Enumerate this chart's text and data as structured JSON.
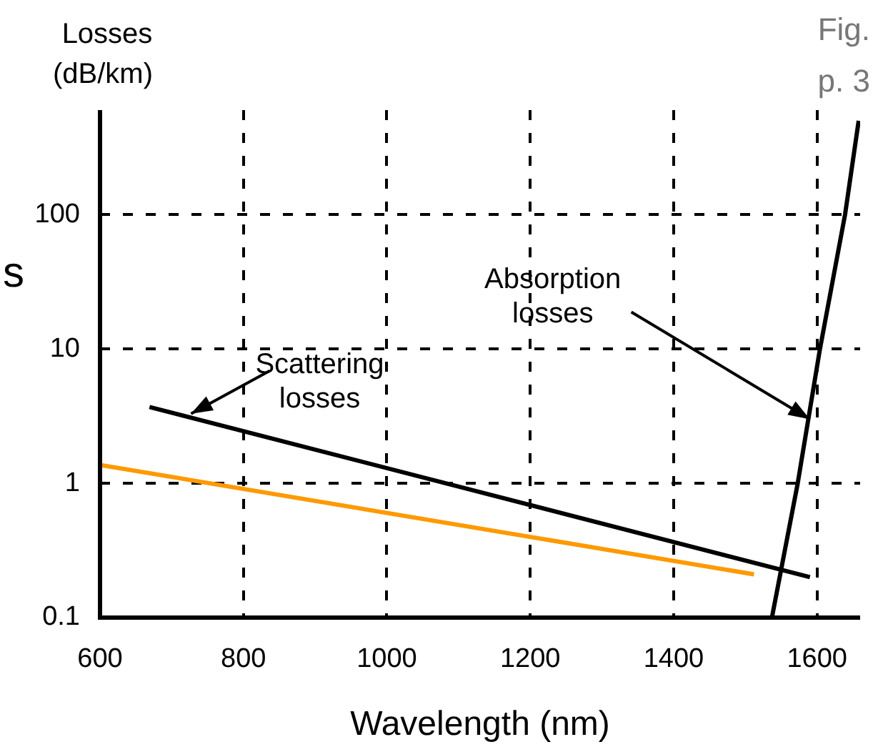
{
  "chart_data": {
    "type": "line",
    "xlabel": "Wavelength (nm)",
    "ylabel": "Losses (dB/km)",
    "log": "y",
    "xlim": [
      600,
      1660
    ],
    "xticks": [
      600,
      800,
      1000,
      1200,
      1400,
      1600
    ],
    "ylim": [
      0.1,
      600
    ],
    "yticks": [
      0.1,
      1,
      10,
      100
    ],
    "grid": true,
    "marker": "none",
    "legend": false,
    "series": [
      {
        "color": "#000000",
        "x": [
          669,
          1590
        ],
        "values": [
          3.7,
          0.2
        ]
      },
      {
        "color": "#ff9900",
        "x": [
          600,
          1512
        ],
        "values": [
          1.37,
          0.21
        ]
      },
      {
        "color": "#000000",
        "x": [
          1537,
          1573,
          1604,
          1639,
          1658
        ],
        "values": [
          0.1,
          1,
          10,
          100,
          500
        ]
      }
    ],
    "annotations": [
      {
        "text": "Scattering losses",
        "x": 727,
        "y": 3.3
      },
      {
        "text": "Absorption losses",
        "x": 1590,
        "y": 3.0
      },
      "Fig.",
      "p. 3",
      "s"
    ]
  }
}
